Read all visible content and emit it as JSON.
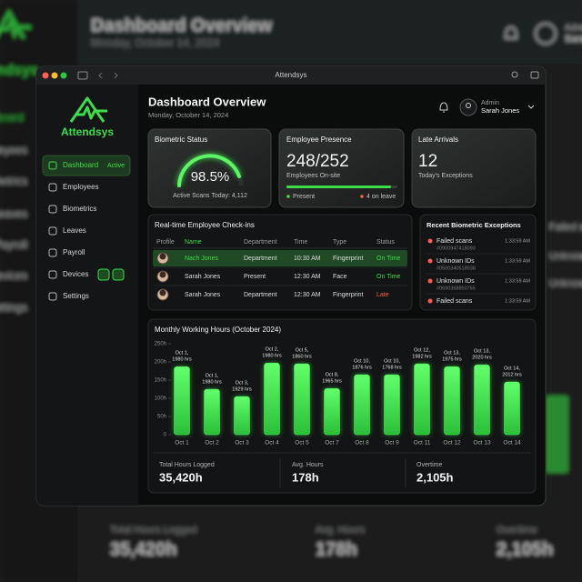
{
  "window": {
    "title": "Attendsys"
  },
  "sidebar": {
    "brand": "Attendsys",
    "nav": [
      {
        "label": "Dashboard",
        "badge": "Active"
      },
      {
        "label": "Employees"
      },
      {
        "label": "Biometrics"
      },
      {
        "label": "Leaves"
      },
      {
        "label": "Payroll"
      },
      {
        "label": "Devices"
      },
      {
        "label": "Settings"
      }
    ]
  },
  "header": {
    "title": "Dashboard Overview",
    "date": "Monday, October 14, 2024",
    "user_role": "Admin",
    "user_name": "Sarah Jones"
  },
  "cards": {
    "biometric": {
      "title": "Biometric Status",
      "value": "98.5%",
      "caption": "Active Scans Today: 4,112"
    },
    "presence": {
      "title": "Employee Presence",
      "value": "248/252",
      "caption": "Employees On-site",
      "legend_present": "Present",
      "legend_leave": "4 on leave"
    },
    "late": {
      "title": "Late Arrivals",
      "value": "12",
      "caption": "Today's Exceptions"
    }
  },
  "checkins": {
    "title": "Real-time Employee Check-ins",
    "columns": [
      "Profile",
      "Name",
      "Department",
      "Time",
      "Type",
      "Status"
    ],
    "rows": [
      [
        "Nach Jones",
        "Department",
        "10:30 AM",
        "Fingerprint",
        "On Time"
      ],
      [
        "Sarah Jones",
        "Present",
        "12:30 AM",
        "Face",
        "On Time"
      ],
      [
        "Sarah Jones",
        "Department",
        "12:30 AM",
        "Fingerprint",
        "Late"
      ]
    ]
  },
  "exceptions": {
    "title": "Recent Biometric Exceptions",
    "items": [
      {
        "label": "Failed scans",
        "id": "#0900947418093",
        "time": "1:33:59 AM"
      },
      {
        "label": "Unknown IDs",
        "id": "#0500340518038",
        "time": "1:33:59 AM"
      },
      {
        "label": "Unknown IDs",
        "id": "#0690368850765",
        "time": "1:33:59 AM"
      },
      {
        "label": "Failed scans",
        "time": "1:33:59 AM"
      }
    ]
  },
  "chart_data": {
    "type": "bar",
    "title": "Monthly Working Hours (October 2024)",
    "categories": [
      "Oct 1",
      "Oct 2",
      "Oct 3",
      "Oct 4",
      "Oct 5",
      "Oct 7",
      "Oct 8",
      "Oct 9",
      "Oct 11",
      "Oct 12",
      "Oct 13",
      "Oct 14"
    ],
    "values": [
      187,
      125,
      105,
      197,
      195,
      127,
      165,
      165,
      195,
      187,
      192,
      145
    ],
    "annotations": [
      [
        "Oct 1,",
        "1980 hrs"
      ],
      [
        "Oct 1,",
        "1980 hrs"
      ],
      [
        "Oct 3,",
        "1929 hrs"
      ],
      [
        "Oct 2,",
        "1980 hrs"
      ],
      [
        "Oct 5,",
        "1860 hrs"
      ],
      [
        "Oct 8,",
        "1965 hrs"
      ],
      [
        "Oct 10,",
        "1876 hrs"
      ],
      [
        "Oct 10,",
        "1768 hrs"
      ],
      [
        "Oct 12,",
        "1982 hrs"
      ],
      [
        "Oct 13,",
        "1975 hrs"
      ],
      [
        "Oct 13,",
        "2020 hrs"
      ],
      [
        "Oct 14,",
        "2012 hrs"
      ]
    ],
    "color": "#46ec52",
    "ylim": [
      0,
      250
    ],
    "yticks": [
      {
        "value": 0,
        "label": "0"
      },
      {
        "value": 50,
        "label": "50h"
      },
      {
        "value": 100,
        "label": "100h"
      },
      {
        "value": 150,
        "label": "150h"
      },
      {
        "value": 200,
        "label": "200h"
      },
      {
        "value": 250,
        "label": "250h"
      }
    ],
    "grid": false
  },
  "stats": [
    {
      "label": "Total Hours Logged",
      "value": "35,420h"
    },
    {
      "label": "Avg. Hours",
      "value": "178h"
    },
    {
      "label": "Overtime",
      "value": "2,105h"
    }
  ]
}
